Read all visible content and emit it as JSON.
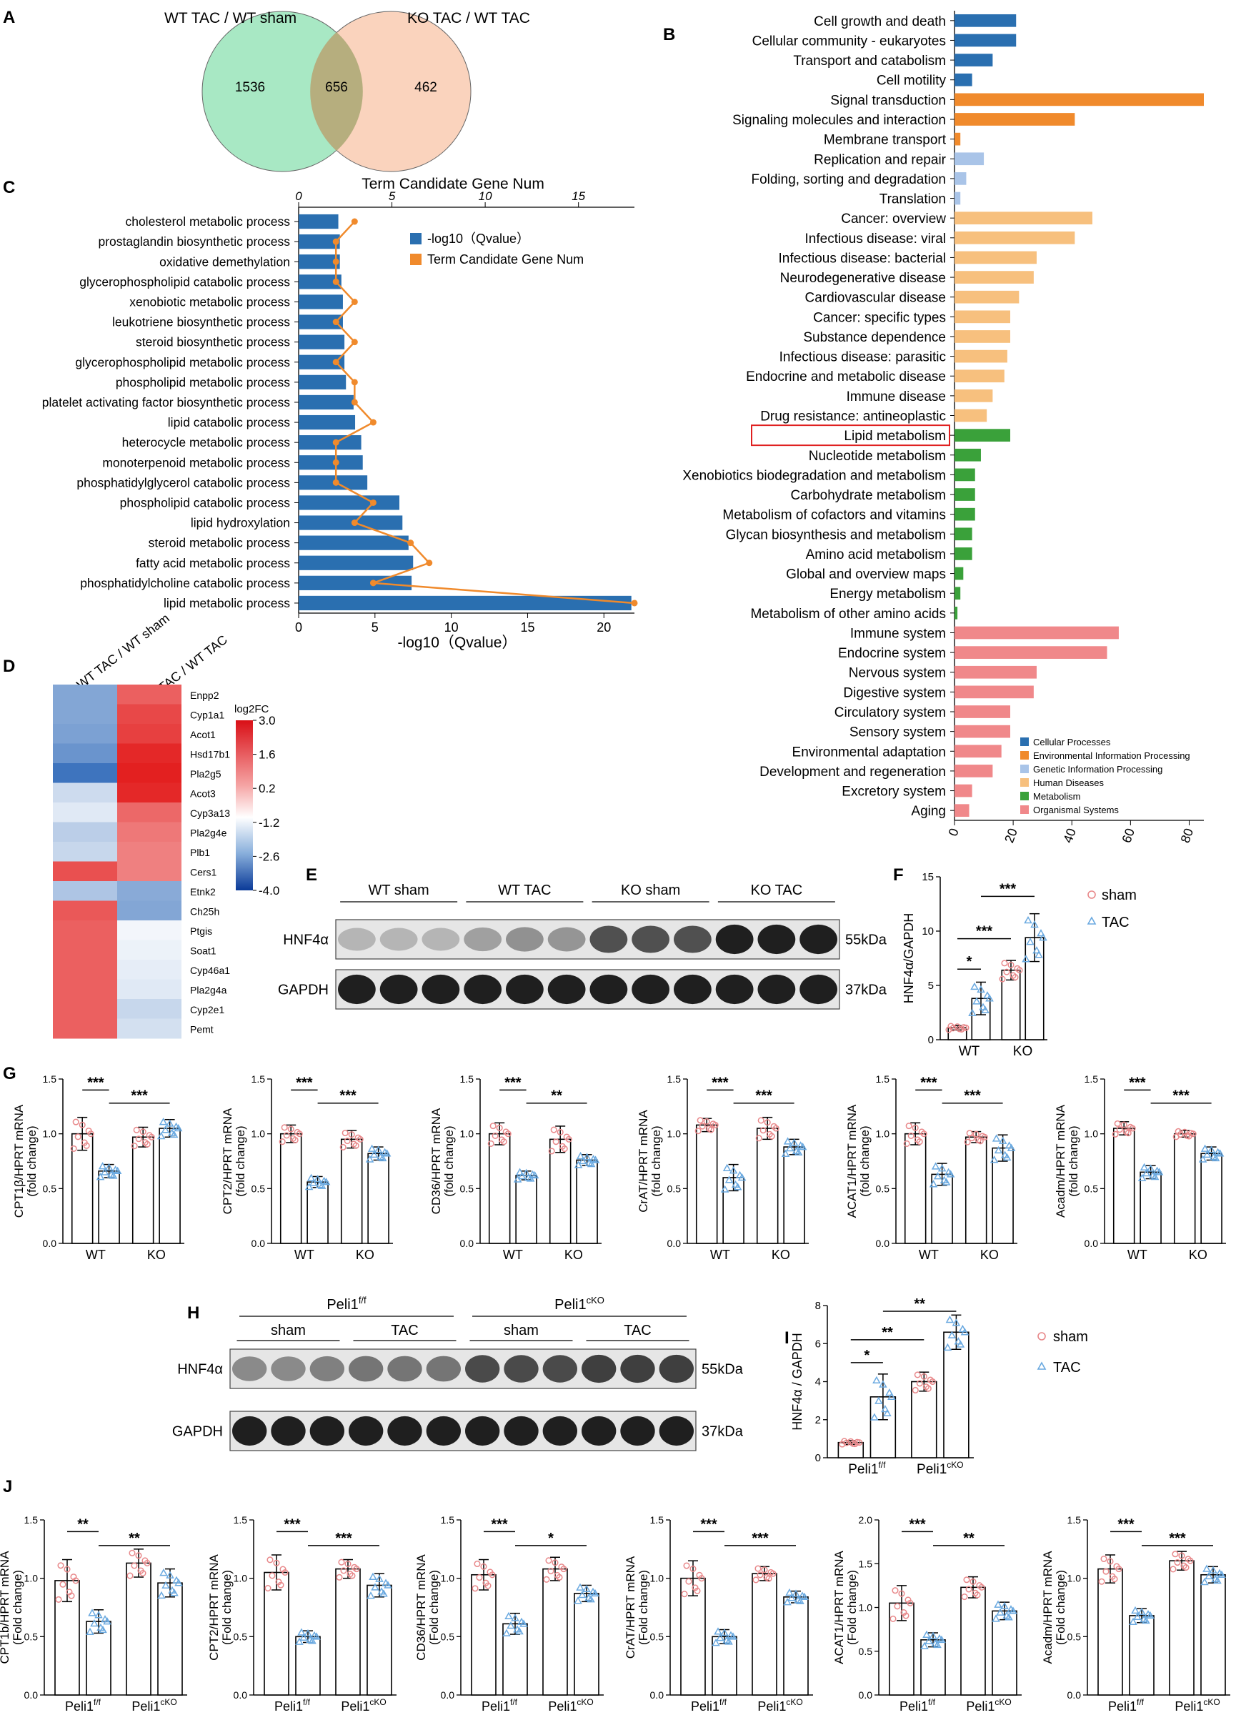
{
  "colors": {
    "venn_left": "#a8e8c4",
    "venn_right": "#f7b591",
    "blue": "#2a6fb0",
    "orange": "#f08a2c",
    "red": "#e8888a",
    "cyan": "#6aa9e0",
    "bar_fill": "#ffffff",
    "heat_hi": "#e32020",
    "heat_lo": "#1f5eb4"
  },
  "panels": {
    "A": "A",
    "B": "B",
    "C": "C",
    "D": "D",
    "E": "E",
    "F": "F",
    "G": "G",
    "H": "H",
    "I": "I",
    "J": "J"
  },
  "venn": {
    "left_label": "WT TAC / WT sham",
    "right_label": "KO TAC / WT TAC",
    "left_only": "1536",
    "overlap": "656",
    "right_only": "462"
  },
  "chart_data": [
    {
      "id": "C",
      "type": "bar+line",
      "title": "Term Candidate Gene Num",
      "xlabel": "-log10（Qvalue）",
      "xlim": [
        0,
        22
      ],
      "xticks": [
        "0",
        "5",
        "10",
        "15",
        "20"
      ],
      "top_xlim": [
        0,
        18
      ],
      "top_xticks": [
        "0",
        "5",
        "10",
        "15"
      ],
      "legend": [
        {
          "label": "-log10（Qvalue）",
          "color": "#2a6fb0"
        },
        {
          "label": "Term Candidate Gene Num",
          "color": "#f08a2c"
        }
      ],
      "categories": [
        "cholesterol metabolic process",
        "prostaglandin biosynthetic process",
        "oxidative demethylation",
        "glycerophospholipid catabolic process",
        "xenobiotic metabolic process",
        "leukotriene biosynthetic process",
        "steroid biosynthetic process",
        "glycerophospholipid metabolic process",
        "phospholipid metabolic process",
        "platelet activating factor biosynthetic process",
        "lipid catabolic process",
        "heterocycle metabolic process",
        "monoterpenoid metabolic process",
        "phosphatidylglycerol catabolic process",
        "phospholipid catabolic process",
        "lipid hydroxylation",
        "steroid metabolic process",
        "fatty acid metabolic process",
        "phosphatidylcholine catabolic process",
        "lipid metabolic process"
      ],
      "values": [
        2.6,
        2.7,
        2.7,
        2.8,
        2.9,
        2.9,
        3.0,
        3.0,
        3.1,
        3.6,
        3.7,
        4.1,
        4.2,
        4.5,
        6.6,
        6.8,
        7.2,
        7.5,
        7.4,
        21.8
      ],
      "gene_num": [
        3,
        2,
        2,
        2,
        3,
        2,
        3,
        2,
        3,
        3,
        4,
        2,
        2,
        2,
        4,
        3,
        6,
        7,
        4,
        18
      ]
    },
    {
      "id": "B",
      "type": "hbar",
      "xlim": [
        0,
        85
      ],
      "xticks": [
        "0",
        "20",
        "40",
        "60",
        "80"
      ],
      "categories": [
        "Cell growth and death",
        "Cellular community - eukaryotes",
        "Transport and catabolism",
        "Cell motility",
        "Signal transduction",
        "Signaling molecules and interaction",
        "Membrane transport",
        "Replication and repair",
        "Folding, sorting and degradation",
        "Translation",
        "Cancer: overview",
        "Infectious disease: viral",
        "Infectious disease: bacterial",
        "Neurodegenerative disease",
        "Cardiovascular disease",
        "Cancer: specific types",
        "Substance dependence",
        "Infectious disease: parasitic",
        "Endocrine and metabolic disease",
        "Immune disease",
        "Drug resistance: antineoplastic",
        "Lipid metabolism",
        "Nucleotide metabolism",
        "Xenobiotics biodegradation and metabolism",
        "Carbohydrate metabolism",
        "Metabolism of cofactors and vitamins",
        "Glycan biosynthesis and metabolism",
        "Amino acid metabolism",
        "Global and overview maps",
        "Energy metabolism",
        "Metabolism of other amino acids",
        "Immune system",
        "Endocrine system",
        "Nervous system",
        "Digestive system",
        "Circulatory system",
        "Sensory system",
        "Environmental adaptation",
        "Development and regeneration",
        "Excretory system",
        "Aging"
      ],
      "values": [
        21,
        21,
        13,
        6,
        85,
        41,
        2,
        10,
        4,
        2,
        47,
        41,
        28,
        27,
        22,
        19,
        19,
        18,
        17,
        13,
        11,
        19,
        9,
        7,
        7,
        7,
        6,
        6,
        3,
        2,
        1,
        56,
        52,
        28,
        27,
        19,
        19,
        16,
        13,
        6,
        5
      ],
      "groups": [
        0,
        0,
        0,
        0,
        1,
        1,
        1,
        2,
        2,
        2,
        3,
        3,
        3,
        3,
        3,
        3,
        3,
        3,
        3,
        3,
        3,
        4,
        4,
        4,
        4,
        4,
        4,
        4,
        4,
        4,
        4,
        5,
        5,
        5,
        5,
        5,
        5,
        5,
        5,
        5,
        5
      ],
      "highlight": "Lipid metabolism",
      "legend": [
        {
          "label": "Cellular Processes",
          "color": "#2a6fb0"
        },
        {
          "label": "Environmental Information Processing",
          "color": "#f08a2c"
        },
        {
          "label": "Genetic Information Processing",
          "color": "#a9c4e8"
        },
        {
          "label": "Human Diseases",
          "color": "#f7c07e"
        },
        {
          "label": "Metabolism",
          "color": "#3aa13a"
        },
        {
          "label": "Organismal Systems",
          "color": "#f0888a"
        }
      ]
    },
    {
      "id": "D",
      "type": "heatmap",
      "columns": [
        "WT TAC / WT sham",
        "KO TAC / WT TAC"
      ],
      "legend_title": "log2FC",
      "scale_ticks": [
        "3.0",
        "1.6",
        "0.2",
        "-1.2",
        "-2.6",
        "-4.0"
      ],
      "vmin": -4,
      "vmax": 3,
      "genes": [
        "Enpp2",
        "Cyp1a1",
        "Acot1",
        "Hsd17b1",
        "Pla2g5",
        "Acot3",
        "Cyp3a13",
        "Pla2g4e",
        "Plb1",
        "Cers1",
        "Etnk2",
        "Ch25h",
        "Ptgis",
        "Soat1",
        "Cyp46a1",
        "Pla2g4a",
        "Cyp2e1",
        "Pemt"
      ],
      "values": [
        [
          -2.0,
          2.0
        ],
        [
          -2.0,
          2.3
        ],
        [
          -2.1,
          2.4
        ],
        [
          -2.4,
          2.7
        ],
        [
          -3.1,
          2.9
        ],
        [
          -0.8,
          2.7
        ],
        [
          -0.5,
          1.9
        ],
        [
          -1.1,
          1.7
        ],
        [
          -0.9,
          1.6
        ],
        [
          2.2,
          1.6
        ],
        [
          -1.3,
          -1.9
        ],
        [
          2.1,
          -2.0
        ],
        [
          2.0,
          -0.2
        ],
        [
          2.0,
          -0.3
        ],
        [
          2.0,
          -0.4
        ],
        [
          2.0,
          -0.5
        ],
        [
          2.0,
          -0.9
        ],
        [
          2.0,
          -0.7
        ]
      ]
    },
    {
      "id": "F",
      "type": "bar",
      "ylabel": "HNF4α/GAPDH",
      "ylim": [
        0,
        15
      ],
      "yticks": [
        "0",
        "5",
        "10",
        "15"
      ],
      "groups": [
        "WT",
        "KO"
      ],
      "series": [
        {
          "name": "sham",
          "values": [
            1.1,
            6.4
          ]
        },
        {
          "name": "TAC",
          "values": [
            3.8,
            9.4
          ]
        }
      ],
      "err": [
        0.2,
        1.5,
        0.9,
        2.2
      ],
      "sig": [
        {
          "a": 0,
          "b": 1,
          "text": "*",
          "y": 6.5
        },
        {
          "a": 0,
          "b": 2,
          "text": "***",
          "y": 9.3
        },
        {
          "a": 1,
          "b": 3,
          "text": "***",
          "y": 13.2
        }
      ]
    },
    {
      "id": "I",
      "type": "bar",
      "ylabel": "HNF4α / GAPDH",
      "ylim": [
        0,
        8
      ],
      "yticks": [
        "0",
        "2",
        "4",
        "6",
        "8"
      ],
      "groups": [
        "Peli1",
        "Peli1"
      ],
      "group_sup": [
        "f/f",
        "cKO"
      ],
      "series": [
        {
          "name": "sham",
          "values": [
            0.8,
            4.0
          ]
        },
        {
          "name": "TAC",
          "values": [
            3.2,
            6.6
          ]
        }
      ],
      "err": [
        0.1,
        1.2,
        0.5,
        0.9
      ],
      "sig": [
        {
          "a": 0,
          "b": 1,
          "text": "*",
          "y": 5.0
        },
        {
          "a": 0,
          "b": 2,
          "text": "**",
          "y": 6.2
        },
        {
          "a": 1,
          "b": 3,
          "text": "**",
          "y": 7.7
        }
      ]
    }
  ],
  "legend_sham_tac": {
    "sham": "sham",
    "tac": "TAC"
  },
  "blots": {
    "E": {
      "groups": [
        "WT sham",
        "WT TAC",
        "KO sham",
        "KO TAC"
      ],
      "rows": [
        "HNF4α",
        "GAPDH"
      ],
      "sizes": [
        "55kDa",
        "37kDa"
      ],
      "intensity": [
        0.25,
        0.25,
        0.25,
        0.35,
        0.42,
        0.4,
        0.72,
        0.72,
        0.72,
        0.95,
        0.95,
        0.95
      ]
    },
    "H": {
      "header1": "Peli1",
      "sup1": "f/f",
      "header2": "Peli1",
      "sup2": "cKO",
      "groups": [
        "sham",
        "TAC",
        "sham",
        "TAC"
      ],
      "rows": [
        "HNF4α",
        "GAPDH"
      ],
      "sizes": [
        "55kDa",
        "37kDa"
      ],
      "intensity": [
        0.45,
        0.45,
        0.5,
        0.55,
        0.55,
        0.55,
        0.75,
        0.75,
        0.75,
        0.8,
        0.8,
        0.8
      ]
    }
  },
  "row_G": {
    "ylabel2": "(fold change)",
    "ylim": [
      0,
      1.5
    ],
    "yticks": [
      "0.0",
      "0.5",
      "1.0",
      "1.5"
    ],
    "groups": [
      "WT",
      "KO"
    ],
    "plots": [
      {
        "ylabel": "CPT1β/HPRT mRNA",
        "values": [
          1.0,
          0.66,
          0.97,
          1.05
        ],
        "err": [
          0.15,
          0.06,
          0.09,
          0.08
        ],
        "sig1": "***",
        "sig2": "***"
      },
      {
        "ylabel": "CPT2/HPRT mRNA",
        "values": [
          1.0,
          0.56,
          0.95,
          0.82
        ],
        "err": [
          0.08,
          0.05,
          0.08,
          0.06
        ],
        "sig1": "***",
        "sig2": "***"
      },
      {
        "ylabel": "CD36/HPRT mRNA",
        "values": [
          1.0,
          0.62,
          0.95,
          0.76
        ],
        "err": [
          0.1,
          0.04,
          0.12,
          0.05
        ],
        "sig1": "***",
        "sig2": "**"
      },
      {
        "ylabel": "CrAT/HPRT mRNA",
        "values": [
          1.08,
          0.6,
          1.05,
          0.88
        ],
        "err": [
          0.06,
          0.12,
          0.1,
          0.07
        ],
        "sig1": "***",
        "sig2": "***"
      },
      {
        "ylabel": "ACAT1/HPRT mRNA",
        "values": [
          1.0,
          0.63,
          0.97,
          0.87
        ],
        "err": [
          0.1,
          0.1,
          0.05,
          0.12
        ],
        "sig1": "***",
        "sig2": "***"
      },
      {
        "ylabel": "Acadm/HPRT mRNA",
        "values": [
          1.05,
          0.65,
          1.0,
          0.82
        ],
        "err": [
          0.06,
          0.06,
          0.03,
          0.06
        ],
        "sig1": "***",
        "sig2": "***"
      }
    ]
  },
  "row_J": {
    "ylabel2": "(Fold change)",
    "ylim": [
      0,
      1.5
    ],
    "yticks": [
      "0.0",
      "0.5",
      "1.0",
      "1.5"
    ],
    "groups": [
      "Peli1",
      "Peli1"
    ],
    "group_sup": [
      "f/f",
      "cKO"
    ],
    "plots": [
      {
        "ylabel": "CPT1b/HPRT mRNA",
        "values": [
          0.98,
          0.63,
          1.13,
          0.96
        ],
        "err": [
          0.18,
          0.1,
          0.12,
          0.12
        ],
        "sig1": "**",
        "sig2": "**"
      },
      {
        "ylabel": "CPT2/HPRT mRNA",
        "values": [
          1.05,
          0.5,
          1.08,
          0.94
        ],
        "err": [
          0.15,
          0.05,
          0.08,
          0.1
        ],
        "sig1": "***",
        "sig2": "***"
      },
      {
        "ylabel": "CD36/HPRT mRNA",
        "values": [
          1.03,
          0.61,
          1.08,
          0.87
        ],
        "err": [
          0.13,
          0.09,
          0.1,
          0.07
        ],
        "sig1": "***",
        "sig2": "*"
      },
      {
        "ylabel": "CrAT/HPRT mRNA",
        "values": [
          1.0,
          0.5,
          1.04,
          0.84
        ],
        "err": [
          0.15,
          0.06,
          0.06,
          0.05
        ],
        "sig1": "***",
        "sig2": "***"
      },
      {
        "ylabel": "ACAT1/HPRT mRNA",
        "values": [
          1.05,
          0.63,
          1.23,
          0.96
        ],
        "err": [
          0.2,
          0.08,
          0.12,
          0.1
        ],
        "sig1": "***",
        "sig2": "**",
        "ylim": [
          0,
          2.0
        ],
        "yticks": [
          "0.0",
          "0.5",
          "1.0",
          "1.5",
          "2.0"
        ]
      },
      {
        "ylabel": "Acadm/HPRT mRNA",
        "values": [
          1.08,
          0.68,
          1.15,
          1.03
        ],
        "err": [
          0.12,
          0.06,
          0.08,
          0.07
        ],
        "sig1": "***",
        "sig2": "***"
      }
    ]
  }
}
